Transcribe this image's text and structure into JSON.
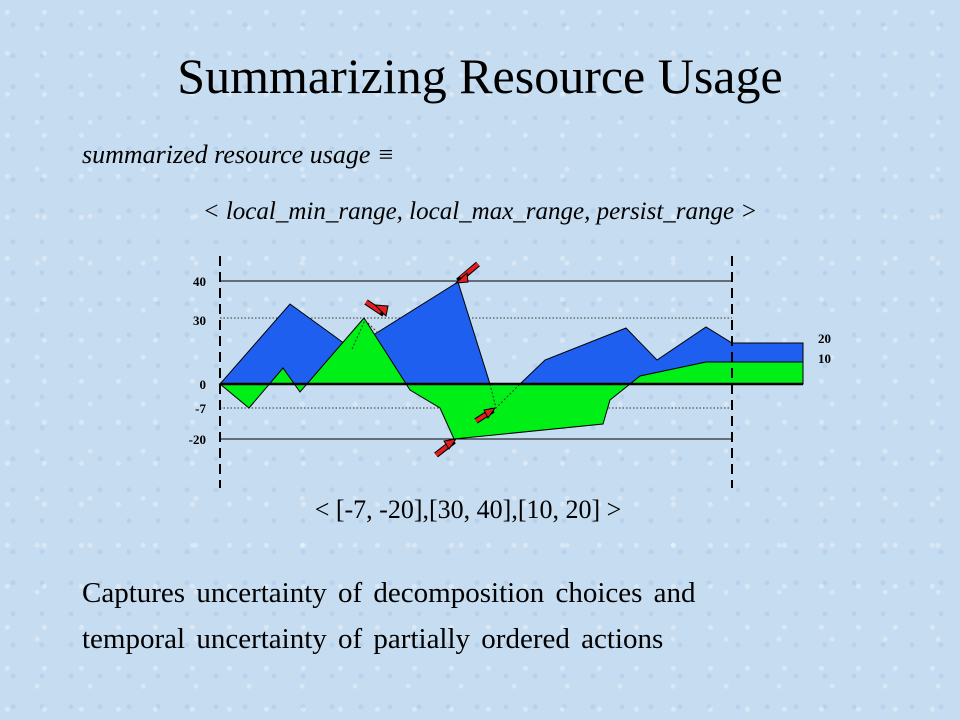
{
  "slide": {
    "title": "Summarizing Resource Usage",
    "definition": "summarized resource usage",
    "definition_symbol": "≡",
    "tuple": "< local_min_range, local_max_range, persist_range >",
    "example_value": "< [-7, -20],[30, 40],[10, 20] >",
    "caption_line1": "Captures uncertainty of decomposition choices and",
    "caption_line2": "temporal uncertainty of partially ordered actions"
  },
  "diagram": {
    "left_axis_labels": [
      "40",
      "30",
      "0",
      "-7",
      "-20"
    ],
    "right_axis_labels": [
      "20",
      "10"
    ],
    "colors": {
      "max_usage_fill": "#1f5ff0",
      "min_usage_fill": "#00ef16",
      "arrow": "#e21f1f",
      "line": "#000000"
    },
    "icons": [
      "arrow-icon",
      "arrow-icon",
      "arrow-icon",
      "arrow-icon"
    ]
  }
}
